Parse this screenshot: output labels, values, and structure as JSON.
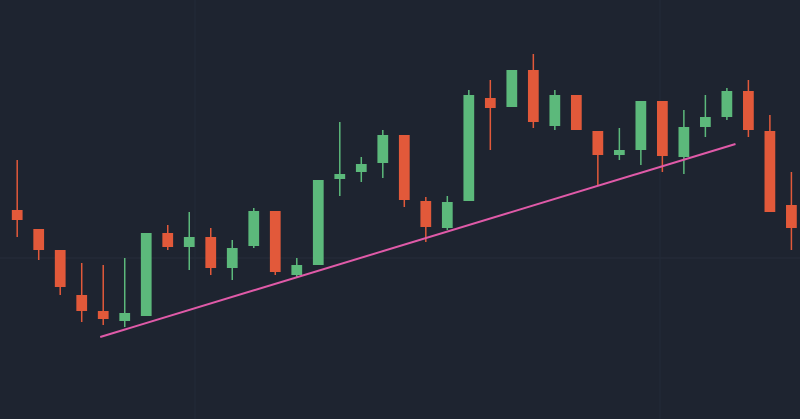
{
  "chart_data": {
    "type": "candlestick",
    "x": [
      1,
      2,
      3,
      4,
      5,
      6,
      7,
      8,
      9,
      10,
      11,
      12,
      13,
      14,
      15,
      16,
      17,
      18,
      19,
      20,
      21,
      22,
      23,
      24,
      25,
      26,
      27,
      28,
      29,
      30,
      31,
      32,
      33,
      34,
      35,
      36,
      37
    ],
    "open": [
      209,
      190,
      169,
      124,
      108,
      98,
      103,
      186,
      172,
      182,
      151,
      173,
      208,
      144,
      154,
      240,
      247,
      256,
      284,
      218,
      191,
      218,
      321,
      312,
      349,
      293,
      324,
      288,
      264,
      269,
      318,
      262,
      292,
      302,
      328,
      288,
      214
    ],
    "close": [
      199,
      169,
      132,
      108,
      100,
      106,
      186,
      172,
      182,
      151,
      171,
      208,
      147,
      154,
      239,
      245,
      255,
      284,
      219,
      192,
      217,
      324,
      311,
      349,
      297,
      324,
      289,
      264,
      269,
      318,
      263,
      292,
      302,
      328,
      289,
      207,
      191
    ],
    "high": [
      259,
      190,
      169,
      156,
      154,
      161,
      186,
      194,
      207,
      191,
      179,
      211,
      208,
      161,
      239,
      297,
      262,
      289,
      284,
      222,
      223,
      329,
      339,
      349,
      365,
      329,
      324,
      288,
      291,
      318,
      318,
      309,
      324,
      331,
      339,
      304,
      247
    ],
    "low": [
      182,
      159,
      124,
      97,
      94,
      92,
      103,
      169,
      149,
      144,
      139,
      171,
      144,
      142,
      154,
      223,
      237,
      241,
      212,
      177,
      189,
      218,
      269,
      312,
      291,
      289,
      289,
      234,
      259,
      254,
      247,
      245,
      282,
      299,
      282,
      207,
      169
    ],
    "up_color": "#5cb97b",
    "down_color": "#e2593a",
    "xlim": [
      0.2,
      37.4
    ],
    "ylim": [
      0,
      419
    ],
    "trendline": {
      "x": [
        4.86,
        34.4
      ],
      "y": [
        82,
        275
      ],
      "color": "#e05aa8"
    }
  }
}
